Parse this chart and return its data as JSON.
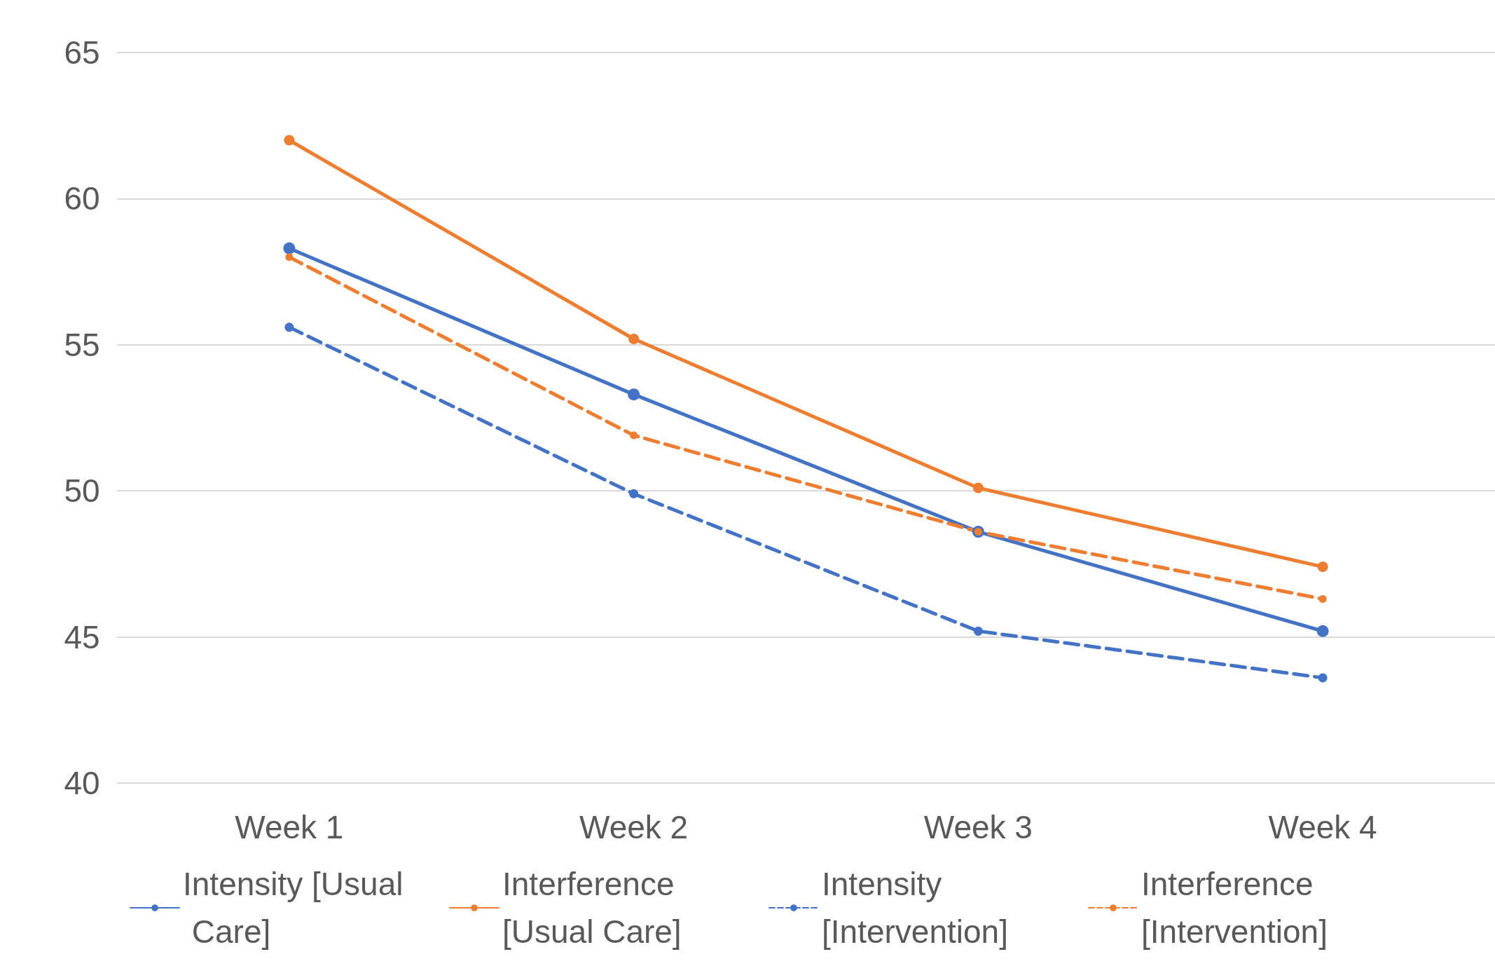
{
  "chart_data": {
    "type": "line",
    "categories": [
      "Week 1",
      "Week 2",
      "Week 3",
      "Week 4"
    ],
    "series": [
      {
        "name": "Intensity [Usual Care]",
        "color": "#4472c4",
        "line_style": "solid",
        "values": [
          58.3,
          53.3,
          48.6,
          45.2
        ]
      },
      {
        "name": "Interference [Usual Care]",
        "color": "#ed7d31",
        "line_style": "solid",
        "values": [
          62.0,
          55.2,
          50.1,
          47.4
        ]
      },
      {
        "name": "Intensity [Intervention]",
        "color": "#4472c4",
        "line_style": "dashed",
        "values": [
          55.6,
          49.9,
          45.2,
          43.6
        ]
      },
      {
        "name": "Interference [Intervention]",
        "color": "#ed7d31",
        "line_style": "dashed",
        "values": [
          58.0,
          51.9,
          48.6,
          46.3
        ]
      }
    ],
    "ylim": [
      40,
      65
    ],
    "yticks": [
      40,
      45,
      50,
      55,
      60,
      65
    ],
    "grid": "y",
    "legend": "bottom",
    "marker": "circle"
  }
}
